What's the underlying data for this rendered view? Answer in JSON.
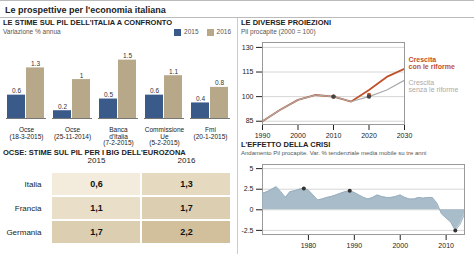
{
  "title": "Le prospettive per l'economia italiana",
  "chart_data": [
    {
      "type": "bar",
      "title": "LE STIME SUL PIL DELL'ITALIA A CONFRONTO",
      "subtitle": "Variazione % annua",
      "categories": [
        "Ocse\n(18-3-2015)",
        "Ocse\n(25-11-2014)",
        "Banca\nd'Italia\n(7-2-2015)",
        "Commissione\nUe\n(5-2-2015)",
        "Fmi\n(20-1-2015)"
      ],
      "series": [
        {
          "name": "2015",
          "color": "#3a5a8a",
          "values": [
            0.6,
            0.2,
            0.5,
            0.6,
            0.4
          ]
        },
        {
          "name": "2016",
          "color": "#b8a88a",
          "values": [
            1.3,
            1.0,
            1.5,
            1.1,
            0.8
          ]
        }
      ],
      "ylim": [
        0,
        1.85
      ],
      "data_labels": true,
      "tick_labels": "x",
      "legend": "top right"
    },
    {
      "type": "table",
      "title": "OCSE: STIME SUL PIL PER I BIG DELL'EUROZONA",
      "categories": [
        "Italia",
        "Francia",
        "Germania"
      ],
      "series": [
        {
          "name": "2015",
          "values": [
            0.6,
            1.1,
            1.7
          ],
          "value_labels": [
            "0,6",
            "1,1",
            "1,7"
          ]
        },
        {
          "name": "2016",
          "values": [
            1.3,
            1.7,
            2.2
          ],
          "value_labels": [
            "1,3",
            "1,7",
            "2,2"
          ]
        }
      ],
      "data_labels": true
    },
    {
      "type": "line",
      "title": "LE DIVERSE PROIEZIONI",
      "ylabel": "Pil procapite (2000 = 100)",
      "x": [
        1990,
        1995,
        2000,
        2005,
        2010,
        2015,
        2020,
        2025,
        2030
      ],
      "series": [
        {
          "name": "Crescita\ncon le riforme",
          "color": "#c0522a",
          "values": [
            85,
            92,
            98,
            101,
            100,
            97,
            104,
            112,
            117
          ]
        },
        {
          "name": "Crescita\nsenza le riforme",
          "color": "#aaaaaa",
          "values": [
            85,
            92,
            98,
            101,
            100,
            97,
            100,
            104,
            110
          ]
        },
        {
          "type": "scatter",
          "marker": "circle",
          "color": "#c0522a",
          "x": [
            2010,
            2020
          ],
          "values": [
            100,
            101
          ]
        },
        {
          "type": "scatter",
          "marker": "circle",
          "color": "#444444",
          "x": [
            2010,
            2020
          ],
          "values": [
            100,
            100
          ]
        }
      ],
      "xlim": [
        1990,
        2030
      ],
      "xticks": [
        1990,
        2000,
        2010,
        2020,
        2030
      ],
      "ylim": [
        83,
        133
      ],
      "yticks": [
        85,
        100,
        115,
        130
      ],
      "grid": "y"
    },
    {
      "type": "area",
      "title": "L'EFFETTO DELLA CRISI",
      "subtitle": "Andamento Pil procapite. Var. % tendenziale media mobile su tre anni",
      "x": [
        1970,
        1971,
        1972,
        1973,
        1974,
        1975,
        1976,
        1977,
        1978,
        1979,
        1980,
        1981,
        1982,
        1983,
        1984,
        1985,
        1986,
        1987,
        1988,
        1989,
        1990,
        1991,
        1992,
        1993,
        1994,
        1995,
        1996,
        1997,
        1998,
        1999,
        2000,
        2001,
        2002,
        2003,
        2004,
        2005,
        2006,
        2007,
        2008,
        2009,
        2010,
        2011,
        2012,
        2013,
        2014
      ],
      "series": [
        {
          "type": "area",
          "color": "#9ab0c0",
          "values": [
            2.0,
            2.2,
            2.5,
            2.8,
            2.2,
            1.5,
            2.2,
            2.3,
            2.5,
            2.6,
            2.4,
            1.8,
            1.2,
            1.3,
            1.5,
            1.6,
            1.8,
            2.0,
            2.2,
            2.3,
            2.1,
            1.8,
            1.5,
            1.3,
            1.5,
            1.8,
            1.6,
            1.5,
            1.5,
            1.6,
            1.8,
            1.5,
            1.3,
            1.3,
            1.5,
            1.4,
            1.5,
            1.5,
            0.8,
            -0.5,
            -1.0,
            -1.5,
            -2.5,
            -1.8,
            -0.5
          ]
        },
        {
          "type": "scatter",
          "marker": "circle",
          "color": "#333333",
          "x": [
            1979,
            1989,
            2012
          ],
          "values": [
            2.6,
            2.3,
            -2.5
          ]
        }
      ],
      "xlim": [
        1970,
        2014
      ],
      "xticks": [
        1980,
        1990,
        2000,
        2010
      ],
      "ylim": [
        -3.0,
        5.5
      ],
      "yticks": [
        -2.5,
        0,
        2.5,
        5
      ],
      "grid": "y"
    }
  ]
}
